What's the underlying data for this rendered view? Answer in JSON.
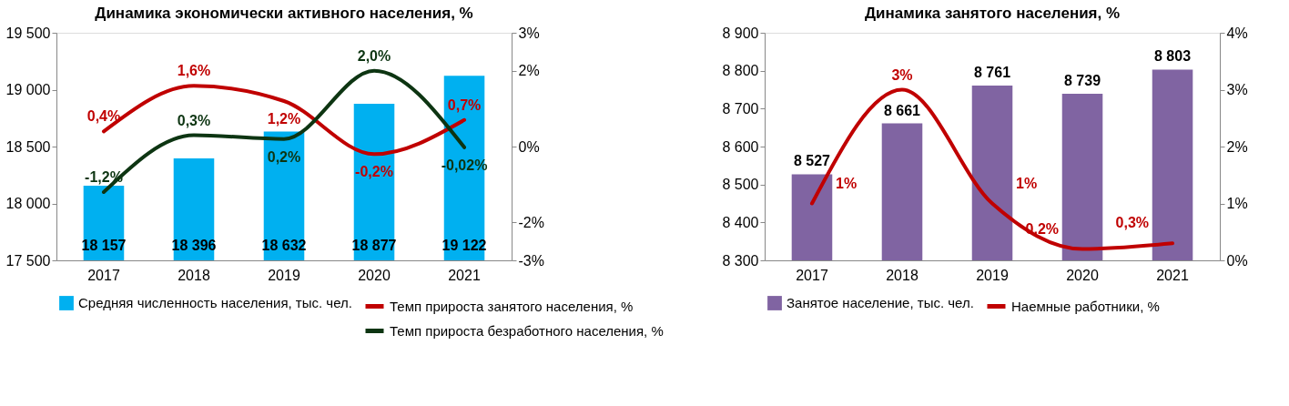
{
  "chart_data": [
    {
      "type": "bar",
      "title": "Динамика экономически активного населения, %",
      "categories": [
        "2017",
        "2018",
        "2019",
        "2020",
        "2021"
      ],
      "series": [
        {
          "type": "bar",
          "name": "Средняя численность населения, тыс. чел.",
          "color": "#00b0f0",
          "values": [
            18157,
            18396,
            18632,
            18877,
            19122
          ],
          "value_labels": [
            "18 157",
            "18 396",
            "18 632",
            "18 877",
            "19 122"
          ]
        },
        {
          "type": "line",
          "axis": "y2",
          "name": "Темп прироста занятого населения, %",
          "color": "#c00000",
          "values": [
            0.4,
            1.6,
            1.2,
            -0.2,
            0.7
          ],
          "value_labels": [
            "0,4%",
            "1,6%",
            "1,2%",
            "-0,2%",
            "0,7%"
          ]
        },
        {
          "type": "line",
          "axis": "y2",
          "name": "Темп прироста безработного населения, %",
          "color": "#0d3512",
          "values": [
            -1.2,
            0.3,
            0.2,
            2.0,
            -0.02
          ],
          "value_labels": [
            "-1,2%",
            "0,3%",
            "0,2%",
            "2,0%",
            "-0,02%"
          ]
        }
      ],
      "ylim": [
        17500,
        19500
      ],
      "yticks": [
        {
          "value": 17500,
          "label": "17 500"
        },
        {
          "value": 18000,
          "label": "18 000"
        },
        {
          "value": 18500,
          "label": "18 500"
        },
        {
          "value": 19000,
          "label": "19 000"
        },
        {
          "value": 19500,
          "label": "19 500"
        }
      ],
      "y2lim": [
        -3,
        3
      ],
      "y2ticks": [
        {
          "value": -3,
          "label": "-3%"
        },
        {
          "value": -2,
          "label": "-2%"
        },
        {
          "value": 0,
          "label": "0%"
        },
        {
          "value": 2,
          "label": "2%"
        },
        {
          "value": 3,
          "label": "3%"
        }
      ],
      "grid": false,
      "legend": "bottom",
      "marker": "none"
    },
    {
      "type": "bar",
      "title": "Динамика занятого населения, %",
      "categories": [
        "2017",
        "2018",
        "2019",
        "2020",
        "2021"
      ],
      "series": [
        {
          "type": "bar",
          "name": "Занятое население, тыс. чел.",
          "color": "#8064a2",
          "values": [
            8527,
            8661,
            8761,
            8739,
            8803
          ],
          "value_labels": [
            "8 527",
            "8 661",
            "8 761",
            "8 739",
            "8 803"
          ]
        },
        {
          "type": "line",
          "axis": "y2",
          "name": "Наемные работники, %",
          "color": "#c00000",
          "values": [
            1,
            3,
            1,
            0.2,
            0.3
          ],
          "value_labels": [
            "1%",
            "3%",
            "1%",
            "0,2%",
            "0,3%"
          ]
        }
      ],
      "ylim": [
        8300,
        8900
      ],
      "yticks": [
        {
          "value": 8300,
          "label": "8 300"
        },
        {
          "value": 8400,
          "label": "8 400"
        },
        {
          "value": 8500,
          "label": "8 500"
        },
        {
          "value": 8600,
          "label": "8 600"
        },
        {
          "value": 8700,
          "label": "8 700"
        },
        {
          "value": 8800,
          "label": "8 800"
        },
        {
          "value": 8900,
          "label": "8 900"
        }
      ],
      "y2lim": [
        0,
        4
      ],
      "y2ticks": [
        {
          "value": 0,
          "label": "0%"
        },
        {
          "value": 1,
          "label": "1%"
        },
        {
          "value": 2,
          "label": "2%"
        },
        {
          "value": 3,
          "label": "3%"
        },
        {
          "value": 4,
          "label": "4%"
        }
      ],
      "grid": false,
      "legend": "bottom",
      "marker": "none"
    }
  ]
}
